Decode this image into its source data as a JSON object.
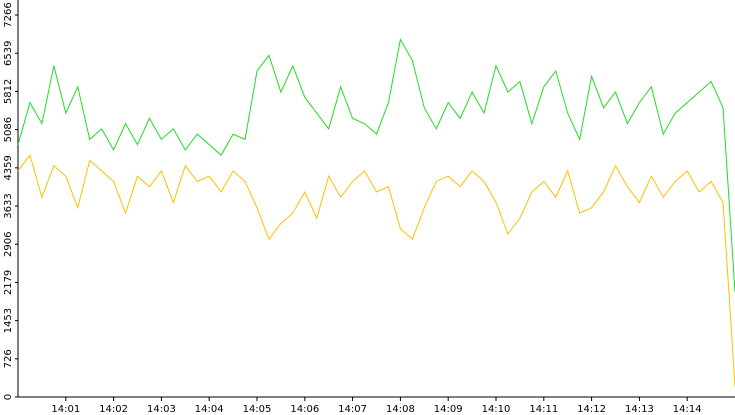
{
  "chart_data": {
    "type": "line",
    "x": [
      840,
      840.25,
      840.5,
      840.75,
      841,
      841.25,
      841.5,
      841.75,
      842,
      842.25,
      842.5,
      842.75,
      843,
      843.25,
      843.5,
      843.75,
      844,
      844.25,
      844.5,
      844.75,
      845,
      845.25,
      845.5,
      845.75,
      846,
      846.25,
      846.5,
      846.75,
      847,
      847.25,
      847.5,
      847.75,
      848,
      848.25,
      848.5,
      848.75,
      849,
      849.25,
      849.5,
      849.75,
      850,
      850.25,
      850.5,
      850.75,
      851,
      851.25,
      851.5,
      851.75,
      852,
      852.25,
      852.5,
      852.75,
      853,
      853.25,
      853.5,
      853.75,
      854,
      854.25,
      854.5,
      854.75,
      855
    ],
    "series": [
      {
        "color": "#22dd22",
        "values": [
          4800,
          5600,
          5200,
          6300,
          5400,
          5900,
          4900,
          5100,
          4700,
          5200,
          4800,
          5300,
          4900,
          5100,
          4700,
          5000,
          4800,
          4600,
          5000,
          4900,
          6200,
          6500,
          5800,
          6300,
          5700,
          5400,
          5100,
          5900,
          5300,
          5200,
          5000,
          5600,
          6800,
          6400,
          5500,
          5100,
          5600,
          5300,
          5800,
          5400,
          6300,
          5800,
          6000,
          5200,
          5900,
          6200,
          5400,
          4900,
          6100,
          5500,
          5800,
          5200,
          5600,
          5900,
          5000,
          5400,
          5600,
          5800,
          6000,
          5500,
          2000
        ]
      },
      {
        "color": "#ffc000",
        "values": [
          4300,
          4600,
          3800,
          4400,
          4200,
          3600,
          4500,
          4300,
          4100,
          3500,
          4200,
          4000,
          4300,
          3700,
          4400,
          4100,
          4200,
          3900,
          4300,
          4100,
          3600,
          3000,
          3300,
          3500,
          3900,
          3400,
          4200,
          3800,
          4100,
          4300,
          3900,
          4000,
          3200,
          3000,
          3600,
          4100,
          4200,
          4000,
          4300,
          4100,
          3700,
          3100,
          3400,
          3900,
          4100,
          3800,
          4300,
          3500,
          3600,
          3900,
          4400,
          4000,
          3700,
          4200,
          3800,
          4100,
          4300,
          3900,
          4100,
          3700,
          200
        ]
      }
    ],
    "xlim": [
      840,
      855
    ],
    "xticks": [
      {
        "value": 841,
        "label": "14:01"
      },
      {
        "value": 842,
        "label": "14:02"
      },
      {
        "value": 843,
        "label": "14:03"
      },
      {
        "value": 844,
        "label": "14:04"
      },
      {
        "value": 845,
        "label": "14:05"
      },
      {
        "value": 846,
        "label": "14:06"
      },
      {
        "value": 847,
        "label": "14:07"
      },
      {
        "value": 848,
        "label": "14:08"
      },
      {
        "value": 849,
        "label": "14:09"
      },
      {
        "value": 850,
        "label": "14:10"
      },
      {
        "value": 851,
        "label": "14:11"
      },
      {
        "value": 852,
        "label": "14:12"
      },
      {
        "value": 853,
        "label": "14:13"
      },
      {
        "value": 854,
        "label": "14:14"
      }
    ],
    "ylim": [
      0,
      7266
    ],
    "yticks": [
      0,
      726,
      1453,
      2179,
      2906,
      3633,
      4359,
      5086,
      5812,
      6539,
      7266
    ]
  }
}
